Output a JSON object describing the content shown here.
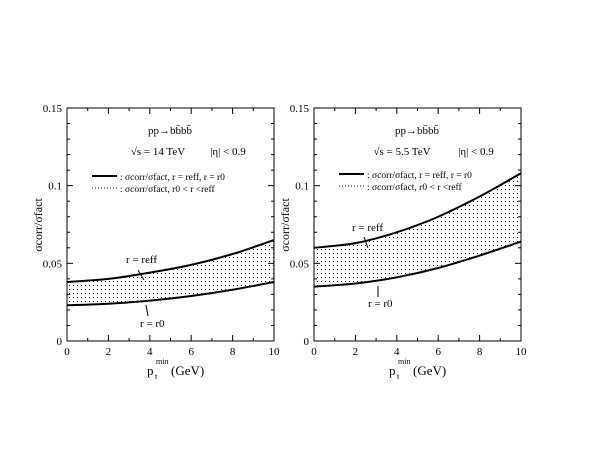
{
  "chart_data": [
    {
      "type": "area",
      "title": "pp→bb̄bb̄",
      "subtitle_energy": "√s = 14 TeV",
      "subtitle_eta": "|η| < 0.9",
      "xlabel": "p",
      "xlabel_sub": "t",
      "xlabel_sup": "min",
      "xlabel_unit": "(GeV)",
      "ylabel": "σcorr/σfact",
      "xlim": [
        0,
        10
      ],
      "ylim": [
        0,
        0.15
      ],
      "xticks": [
        "0",
        "2",
        "4",
        "6",
        "8",
        "10"
      ],
      "yticks": [
        "0",
        "0.05",
        "0.1",
        "0.15"
      ],
      "legend": [
        {
          "style": "solid",
          "text": ": σcorr/σfact, r = reff, r = r0"
        },
        {
          "style": "dotted",
          "text": ": σcorr/σfact, r0 < r <reff"
        }
      ],
      "labels": {
        "upper": "r = reff",
        "lower": "r = r0"
      },
      "series": [
        {
          "name": "r = reff",
          "x": [
            0,
            2,
            4,
            6,
            8,
            10
          ],
          "values": [
            0.038,
            0.04,
            0.044,
            0.049,
            0.056,
            0.065
          ]
        },
        {
          "name": "r = r0",
          "x": [
            0,
            2,
            4,
            6,
            8,
            10
          ],
          "values": [
            0.023,
            0.024,
            0.026,
            0.029,
            0.033,
            0.038
          ]
        }
      ]
    },
    {
      "type": "area",
      "title": "pp→bb̄bb̄",
      "subtitle_energy": "√s = 5.5 TeV",
      "subtitle_eta": "|η| < 0.9",
      "xlabel": "p",
      "xlabel_sub": "t",
      "xlabel_sup": "min",
      "xlabel_unit": "(GeV)",
      "ylabel": "σcorr/σfact",
      "xlim": [
        0,
        10
      ],
      "ylim": [
        0,
        0.15
      ],
      "xticks": [
        "0",
        "2",
        "4",
        "6",
        "8",
        "10"
      ],
      "yticks": [
        "0",
        "0.05",
        "0.1",
        "0.15"
      ],
      "legend": [
        {
          "style": "solid",
          "text": ": σcorr/σfact, r = reff, r = r0"
        },
        {
          "style": "dotted",
          "text": ": σcorr/σfact, r0 < r <reff"
        }
      ],
      "labels": {
        "upper": "r = reff",
        "lower": "r = r0"
      },
      "series": [
        {
          "name": "r = reff",
          "x": [
            0,
            2,
            4,
            6,
            8,
            10
          ],
          "values": [
            0.06,
            0.063,
            0.07,
            0.08,
            0.093,
            0.108
          ]
        },
        {
          "name": "r = r0",
          "x": [
            0,
            2,
            4,
            6,
            8,
            10
          ],
          "values": [
            0.035,
            0.037,
            0.041,
            0.047,
            0.055,
            0.064
          ]
        }
      ]
    }
  ]
}
